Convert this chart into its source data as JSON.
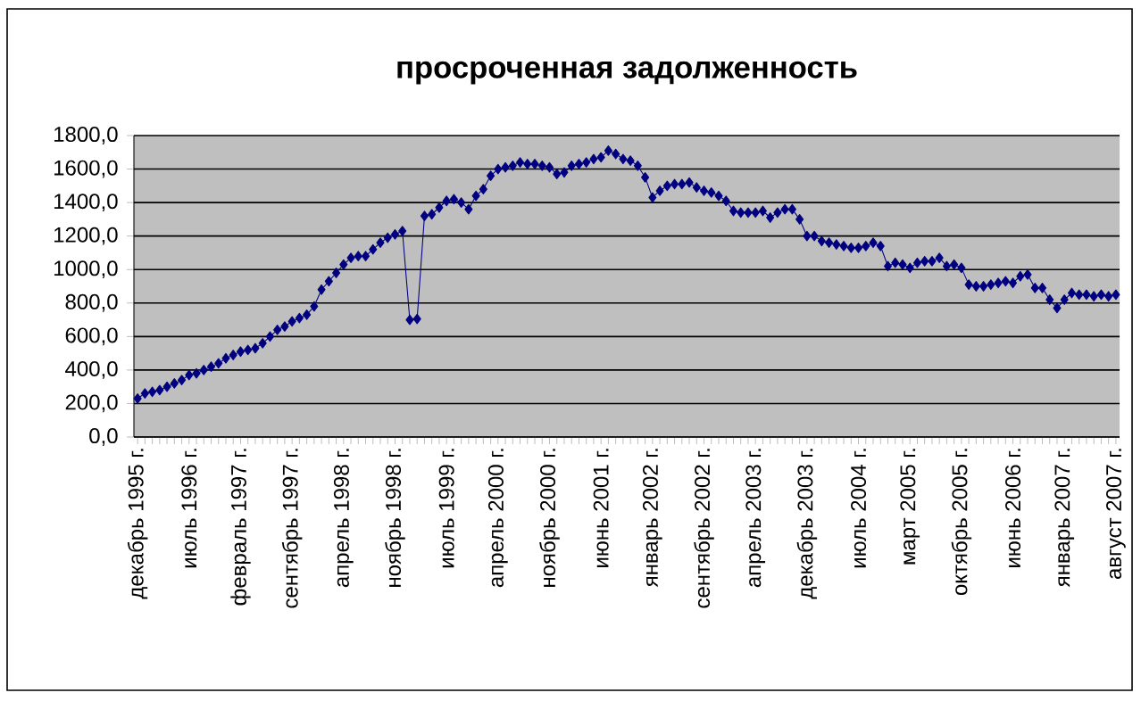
{
  "chart_data": {
    "type": "line",
    "title": "просроченная задолженность",
    "categories": [
      "декабрь 1995 г.",
      null,
      null,
      null,
      null,
      null,
      null,
      "июль 1996 г.",
      null,
      null,
      null,
      null,
      null,
      null,
      "февраль 1997 г.",
      null,
      null,
      null,
      null,
      null,
      null,
      "сентябрь 1997 г.",
      null,
      null,
      null,
      null,
      null,
      null,
      "апрель 1998 г.",
      null,
      null,
      null,
      null,
      null,
      null,
      "ноябрь 1998 г.",
      null,
      null,
      null,
      null,
      null,
      null,
      "июль 1999 г.",
      null,
      null,
      null,
      null,
      null,
      null,
      "апрель 2000 г.",
      null,
      null,
      null,
      null,
      null,
      null,
      "ноябрь 2000 г.",
      null,
      null,
      null,
      null,
      null,
      null,
      "июнь 2001 г.",
      null,
      null,
      null,
      null,
      null,
      null,
      "январь 2002 г.",
      null,
      null,
      null,
      null,
      null,
      null,
      "сентябрь 2002 г.",
      null,
      null,
      null,
      null,
      null,
      null,
      "апрель 2003 г.",
      null,
      null,
      null,
      null,
      null,
      null,
      "декабрь 2003 г.",
      null,
      null,
      null,
      null,
      null,
      null,
      "июль 2004 г.",
      null,
      null,
      null,
      null,
      null,
      null,
      "март 2005 г.",
      null,
      null,
      null,
      null,
      null,
      null,
      "октябрь 2005 г.",
      null,
      null,
      null,
      null,
      null,
      null,
      "июнь 2006 г.",
      null,
      null,
      null,
      null,
      null,
      null,
      "январь 2007 г.",
      null,
      null,
      null,
      null,
      null,
      null,
      "август 2007 г."
    ],
    "series": [
      {
        "color": "#000080",
        "values": [
          230,
          260,
          270,
          280,
          300,
          320,
          340,
          370,
          380,
          400,
          420,
          440,
          470,
          490,
          510,
          520,
          530,
          560,
          600,
          640,
          660,
          690,
          710,
          730,
          780,
          880,
          930,
          980,
          1030,
          1070,
          1080,
          1080,
          1120,
          1160,
          1190,
          1210,
          1230,
          700,
          705,
          1320,
          1330,
          1370,
          1410,
          1420,
          1400,
          1360,
          1440,
          1480,
          1560,
          1600,
          1610,
          1620,
          1640,
          1630,
          1630,
          1620,
          1610,
          1570,
          1580,
          1620,
          1630,
          1640,
          1660,
          1670,
          1710,
          1690,
          1660,
          1650,
          1620,
          1550,
          1430,
          1470,
          1500,
          1510,
          1510,
          1520,
          1490,
          1470,
          1460,
          1440,
          1410,
          1350,
          1340,
          1340,
          1340,
          1350,
          1310,
          1340,
          1360,
          1360,
          1300,
          1200,
          1200,
          1170,
          1160,
          1150,
          1140,
          1130,
          1130,
          1140,
          1160,
          1140,
          1020,
          1040,
          1030,
          1010,
          1040,
          1050,
          1050,
          1070,
          1020,
          1030,
          1010,
          910,
          900,
          900,
          910,
          920,
          930,
          920,
          960,
          970,
          890,
          890,
          820,
          770,
          820,
          860,
          850,
          850,
          840,
          850,
          840,
          850
        ]
      }
    ],
    "ylim": [
      0,
      1800
    ],
    "yticks": [
      {
        "value": 0,
        "label": "0,0"
      },
      {
        "value": 200,
        "label": "200,0"
      },
      {
        "value": 400,
        "label": "400,0"
      },
      {
        "value": 600,
        "label": "600,0"
      },
      {
        "value": 800,
        "label": "800,0"
      },
      {
        "value": 1000,
        "label": "1000,0"
      },
      {
        "value": 1200,
        "label": "1200,0"
      },
      {
        "value": 1400,
        "label": "1400,0"
      },
      {
        "value": 1600,
        "label": "1600,0"
      },
      {
        "value": 1800,
        "label": "1800,0"
      }
    ],
    "grid": "y",
    "marker": "diamond",
    "line_style": "solid"
  }
}
